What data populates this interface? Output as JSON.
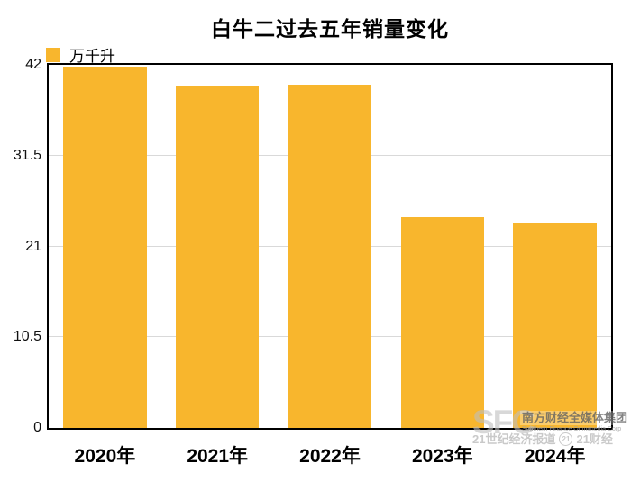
{
  "chart_data": {
    "type": "bar",
    "title": "白牛二过去五年销量变化",
    "legend": {
      "label": "万千升",
      "position": "top-left"
    },
    "categories": [
      "2020年",
      "2021年",
      "2022年",
      "2023年",
      "2024年"
    ],
    "values": [
      41.8,
      39.6,
      39.7,
      24.4,
      23.8
    ],
    "unit": "万千升",
    "xlabel": "",
    "ylabel": "",
    "ylim": [
      0,
      42
    ],
    "yticks": [
      0,
      10.5,
      21,
      31.5,
      42
    ],
    "ytick_labels": [
      "0",
      "10.5",
      "21",
      "31.5",
      "42"
    ],
    "bar_color": "#F8B62D",
    "gridline_color": "#d9d9d9",
    "grid": true,
    "plot_border": true
  },
  "watermark": {
    "sfc": "SFC",
    "org_cn": "南方财经全媒体集团",
    "org_en": "Southern Finance Omnimedia Corp",
    "brand_left": "21世纪经济报道",
    "badge": "21",
    "brand_right": "21财经"
  }
}
